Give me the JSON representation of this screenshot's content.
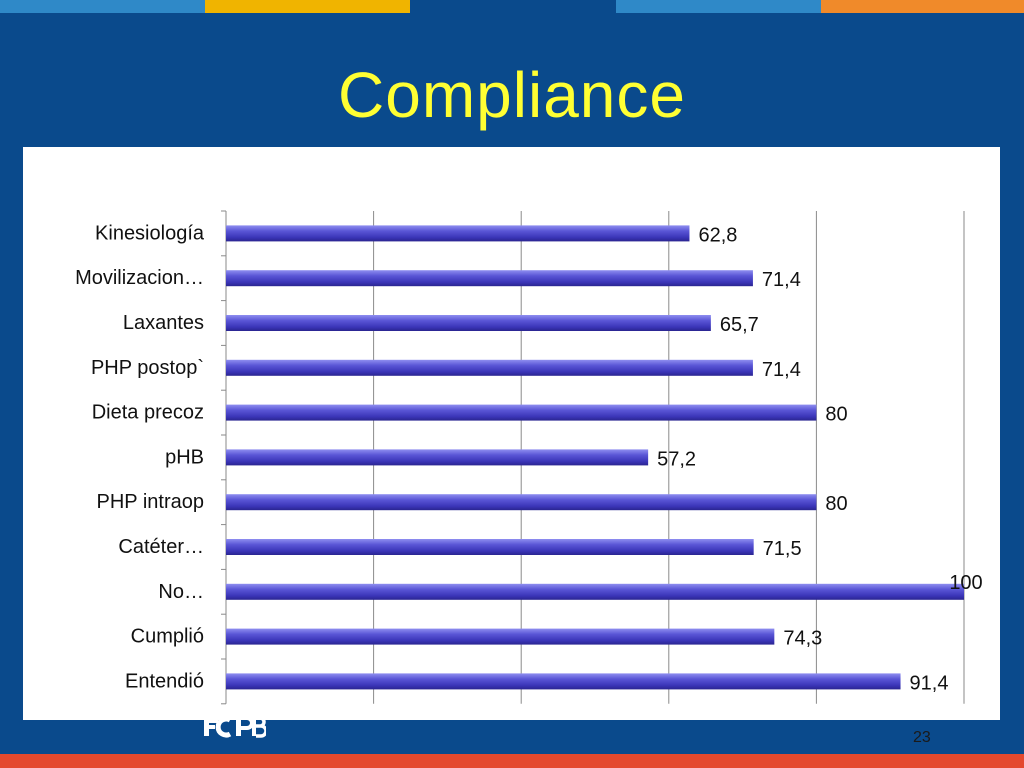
{
  "slide": {
    "title": "Compliance",
    "page_number": "23",
    "logo_text": "FCPB"
  },
  "colors": {
    "background": "#0a4a8c",
    "title": "#ffff33",
    "bar": "#4b46cc",
    "top_stripes": [
      "#2f89c8",
      "#f0b400",
      "#0a4a8c",
      "#2f89c8",
      "#f08a2a"
    ],
    "bottom_stripe": "#e4492e"
  },
  "chart_data": {
    "type": "bar",
    "orientation": "horizontal",
    "categories": [
      "Kinesiología",
      "Movilizacion…",
      "Laxantes",
      "PHP postop`",
      "Dieta precoz",
      "pHB",
      "PHP intraop",
      "Catéter…",
      "No…",
      "Cumplió",
      "Entendió"
    ],
    "value_labels": [
      "62,8",
      "71,4",
      "65,7",
      "71,4",
      "80",
      "57,2",
      "80",
      "71,5",
      "100",
      "74,3",
      "91,4"
    ],
    "values": [
      62.8,
      71.4,
      65.7,
      71.4,
      80,
      57.2,
      80,
      71.5,
      100,
      74.3,
      91.4
    ],
    "xlim": [
      0,
      100
    ],
    "grid": true,
    "legend": "none"
  }
}
